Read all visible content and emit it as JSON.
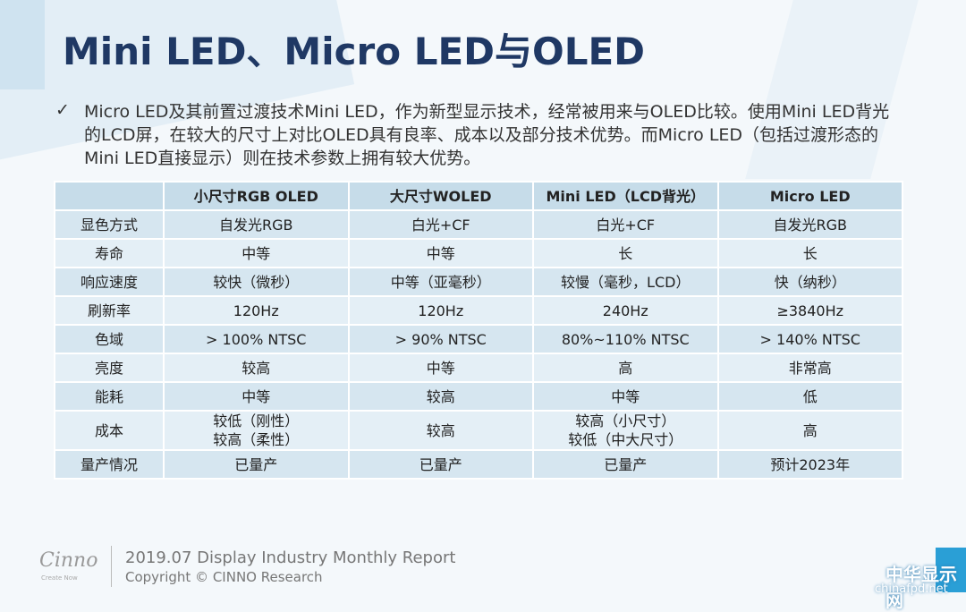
{
  "header": {
    "title": "Mini LED、Micro LED与OLED"
  },
  "bullet": {
    "mark": "✓",
    "text": "Micro LED及其前置过渡技术Mini LED，作为新型显示技术，经常被用来与OLED比较。使用Mini LED背光的LCD屏，在较大的尺寸上对比OLED具有良率、成本以及部分技术优势。而Micro LED（包括过渡形态的Mini LED直接显示）则在技术参数上拥有较大优势。"
  },
  "table": {
    "columns": [
      "",
      "小尺寸RGB OLED",
      "大尺寸WOLED",
      "Mini LED（LCD背光）",
      "Micro LED"
    ],
    "rows": [
      [
        "显色方式",
        "自发光RGB",
        "白光+CF",
        "白光+CF",
        "自发光RGB"
      ],
      [
        "寿命",
        "中等",
        "中等",
        "长",
        "长"
      ],
      [
        "响应速度",
        "较快（微秒）",
        "中等（亚毫秒）",
        "较慢（毫秒，LCD）",
        "快（纳秒）"
      ],
      [
        "刷新率",
        "120Hz",
        "120Hz",
        "240Hz",
        "≥3840Hz"
      ],
      [
        "色域",
        "> 100% NTSC",
        "> 90% NTSC",
        "80%~110% NTSC",
        "> 140% NTSC"
      ],
      [
        "亮度",
        "较高",
        "中等",
        "高",
        "非常高"
      ],
      [
        "能耗",
        "中等",
        "较高",
        "中等",
        "低"
      ],
      [
        "成本",
        "较低（刚性）\n较高（柔性）",
        "较高",
        "较高（小尺寸）\n较低（中大尺寸）",
        "高"
      ],
      [
        "量产情况",
        "已量产",
        "已量产",
        "已量产",
        "预计2023年"
      ]
    ]
  },
  "footer": {
    "logo": "Cinno",
    "tagline": "Create Now",
    "report": "2019.07 Display Industry Monthly Report",
    "copyright": "Copyright © CINNO Research"
  },
  "watermark": {
    "name": "中华显示网",
    "url": "chinafpd.net"
  }
}
